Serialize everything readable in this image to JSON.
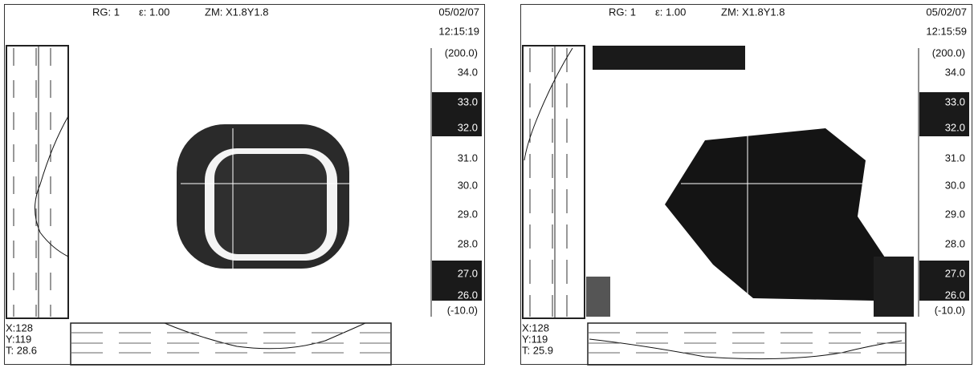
{
  "panels": [
    {
      "header": {
        "range": "RG: 1",
        "emissivity": "ε: 1.00",
        "zoom": "ZM: X1.8Y1.8",
        "date": "05/02/07",
        "time": "12:15:19"
      },
      "scale": [
        "(200.0)",
        "34.0",
        "33.0",
        "32.0",
        "31.0",
        "30.0",
        "29.0",
        "28.0",
        "27.0",
        "26.0",
        "(-10.0)"
      ],
      "readout": {
        "x": "X:128",
        "y": "Y:119",
        "t": "T:  28.6"
      }
    },
    {
      "header": {
        "range": "RG: 1",
        "emissivity": "ε: 1.00",
        "zoom": "ZM: X1.8Y1.8",
        "date": "05/02/07",
        "time": "12:15:59"
      },
      "scale": [
        "(200.0)",
        "34.0",
        "33.0",
        "32.0",
        "31.0",
        "30.0",
        "29.0",
        "28.0",
        "27.0",
        "26.0",
        "(-10.0)"
      ],
      "readout": {
        "x": "X:128",
        "y": "Y:119",
        "t": "T:  25.9"
      }
    }
  ]
}
